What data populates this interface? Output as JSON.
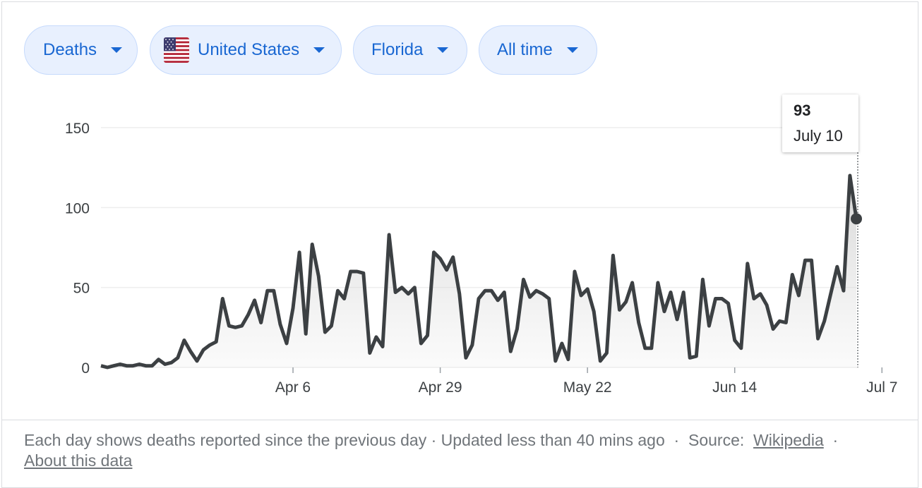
{
  "filters": {
    "metric": "Deaths",
    "country": "United States",
    "region": "Florida",
    "range": "All time"
  },
  "icons": {
    "flag": "us-flag-icon",
    "caret": "caret-down-icon"
  },
  "colors": {
    "line": "#3c4043",
    "accent": "#1967d2",
    "chip_bg": "#e8f0fe"
  },
  "tooltip": {
    "value": "93",
    "date": "July 10"
  },
  "footer": {
    "description": "Each day shows deaths reported since the previous day · Updated less than 40 mins ago",
    "separator": "·",
    "source_label": "Source:",
    "source_link": "Wikipedia",
    "about_link": "About this data"
  },
  "chart_data": {
    "type": "area",
    "ylim": [
      0,
      150
    ],
    "y_ticks": [
      0,
      50,
      100,
      150
    ],
    "x_tick_labels": [
      "Apr 6",
      "Apr 29",
      "May 22",
      "Jun 14",
      "Jul 7"
    ],
    "start_date": "2020-03-07",
    "values": [
      1,
      0,
      1,
      2,
      1,
      1,
      2,
      1,
      1,
      5,
      2,
      3,
      6,
      17,
      10,
      4,
      11,
      14,
      16,
      43,
      26,
      25,
      26,
      33,
      42,
      28,
      48,
      48,
      27,
      15,
      37,
      72,
      21,
      77,
      57,
      22,
      26,
      48,
      43,
      60,
      60,
      59,
      9,
      19,
      13,
      83,
      47,
      50,
      46,
      50,
      15,
      20,
      72,
      68,
      61,
      69,
      46,
      6,
      14,
      43,
      48,
      48,
      42,
      47,
      10,
      24,
      55,
      44,
      48,
      46,
      43,
      4,
      15,
      5,
      60,
      45,
      49,
      35,
      4,
      9,
      70,
      36,
      41,
      53,
      28,
      12,
      12,
      53,
      35,
      47,
      30,
      47,
      6,
      7,
      55,
      26,
      43,
      43,
      40,
      17,
      12,
      65,
      43,
      46,
      39,
      24,
      29,
      28,
      58,
      45,
      67,
      67,
      18,
      29,
      46,
      63,
      48,
      120,
      93
    ],
    "highlight": {
      "date": "July 10",
      "value": 93
    }
  }
}
